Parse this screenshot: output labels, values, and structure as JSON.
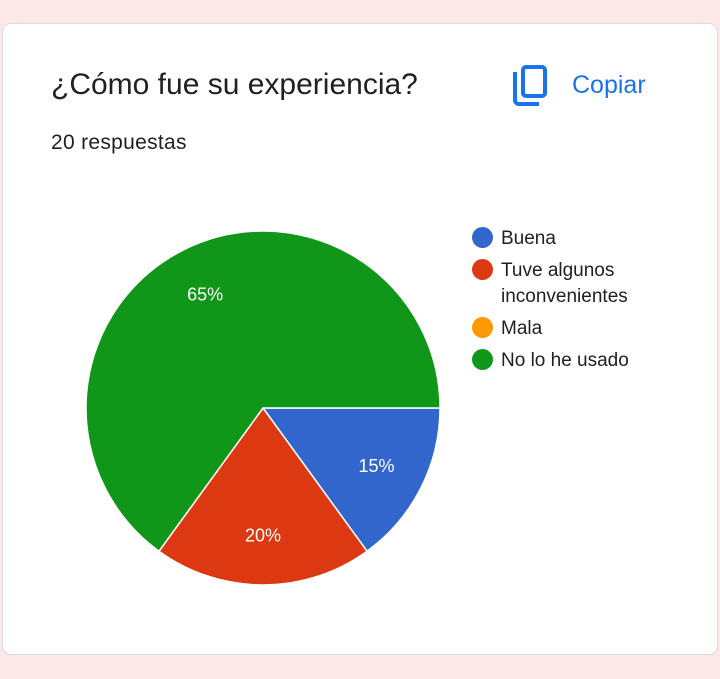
{
  "question": {
    "title": "¿Cómo fue su experiencia?",
    "response_count": "20 respuestas"
  },
  "toolbar": {
    "copy_label": "Copiar",
    "copy_icon": "copy-icon"
  },
  "colors": {
    "accent": "#1a73e8",
    "page_background": "#fce8e6"
  },
  "chart_data": {
    "type": "pie",
    "categories": [
      "Buena",
      "Tuve algunos inconvenientes",
      "Mala",
      "No lo he usado"
    ],
    "values": [
      15,
      20,
      0,
      65
    ],
    "value_labels": [
      "15%",
      "20%",
      "",
      "65%"
    ],
    "colors": [
      "#3366cc",
      "#dc3912",
      "#ff9900",
      "#109618"
    ],
    "legend_position": "right"
  }
}
